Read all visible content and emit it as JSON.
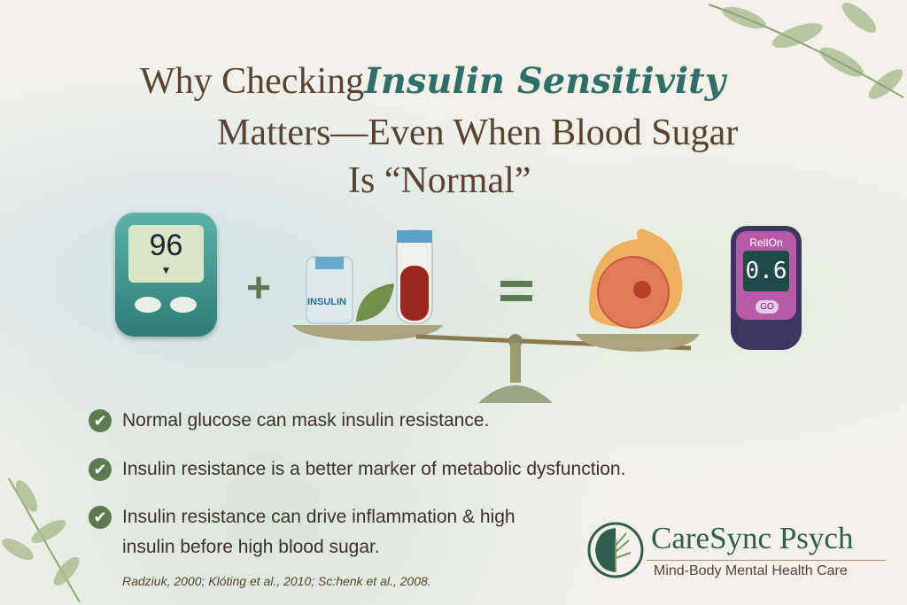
{
  "title": {
    "line1_prefix": "Why Checking",
    "line1_highlight": "Insulin Sensitivity",
    "line2": "Matters—Even When Blood Sugar",
    "line3": "Is “Normal”"
  },
  "illustration": {
    "meter_left_reading": "96",
    "plus": "+",
    "vial_label": "INSULIN",
    "equals": "=",
    "meter_right_brand": "RelIOn",
    "meter_right_reading": "0.6",
    "meter_right_button": "GO"
  },
  "bullets": [
    {
      "text": "Normal glucose can mask insulin resistance.",
      "icon": "check-icon"
    },
    {
      "text": "Insulin resistance is a better marker of metabolic dysfunction.",
      "icon": "check-icon"
    },
    {
      "text": "Insulin resistance can drive inflammation & high insulin before high blood sugar.",
      "icon": "check-icon"
    }
  ],
  "citation": "Radziuk, 2000; Klóting et al., 2010; Sc:henk et al., 2008.",
  "brand": {
    "name": "CareSync Psych",
    "tagline": "Mind-Body Mental Health Care"
  },
  "colors": {
    "title": "#5a4232",
    "accent": "#2f6e6a",
    "check": "#5c7a52"
  }
}
